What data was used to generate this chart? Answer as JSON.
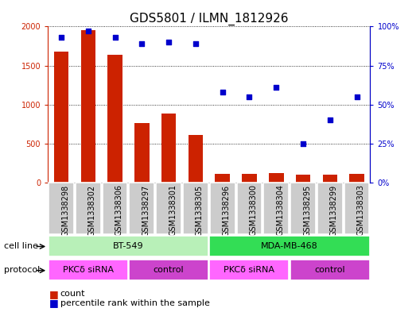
{
  "title": "GDS5801 / ILMN_1812926",
  "samples": [
    "GSM1338298",
    "GSM1338302",
    "GSM1338306",
    "GSM1338297",
    "GSM1338301",
    "GSM1338305",
    "GSM1338296",
    "GSM1338300",
    "GSM1338304",
    "GSM1338295",
    "GSM1338299",
    "GSM1338303"
  ],
  "counts": [
    1680,
    1950,
    1640,
    760,
    880,
    610,
    110,
    110,
    120,
    100,
    100,
    115
  ],
  "percentiles": [
    93,
    97,
    93,
    89,
    90,
    89,
    58,
    55,
    61,
    25,
    40,
    55
  ],
  "cell_lines": [
    {
      "label": "BT-549",
      "start": 0,
      "end": 6,
      "color": "#b8f0b8"
    },
    {
      "label": "MDA-MB-468",
      "start": 6,
      "end": 12,
      "color": "#33dd55"
    }
  ],
  "protocols": [
    {
      "label": "PKCδ siRNA",
      "start": 0,
      "end": 3,
      "color": "#ff66ff"
    },
    {
      "label": "control",
      "start": 3,
      "end": 6,
      "color": "#cc44cc"
    },
    {
      "label": "PKCδ siRNA",
      "start": 6,
      "end": 9,
      "color": "#ff66ff"
    },
    {
      "label": "control",
      "start": 9,
      "end": 12,
      "color": "#cc44cc"
    }
  ],
  "ylim_left": [
    0,
    2000
  ],
  "ylim_right": [
    0,
    100
  ],
  "yticks_left": [
    0,
    500,
    1000,
    1500,
    2000
  ],
  "ytick_labels_left": [
    "0",
    "500",
    "1000",
    "1500",
    "2000"
  ],
  "yticks_right": [
    0,
    25,
    50,
    75,
    100
  ],
  "ytick_labels_right": [
    "0%",
    "25%",
    "50%",
    "75%",
    "100%"
  ],
  "bar_color": "#cc2200",
  "dot_color": "#0000cc",
  "bar_width": 0.55,
  "title_fontsize": 11,
  "tick_fontsize": 7,
  "label_fontsize": 8,
  "legend_fontsize": 8,
  "sample_fontsize": 7
}
